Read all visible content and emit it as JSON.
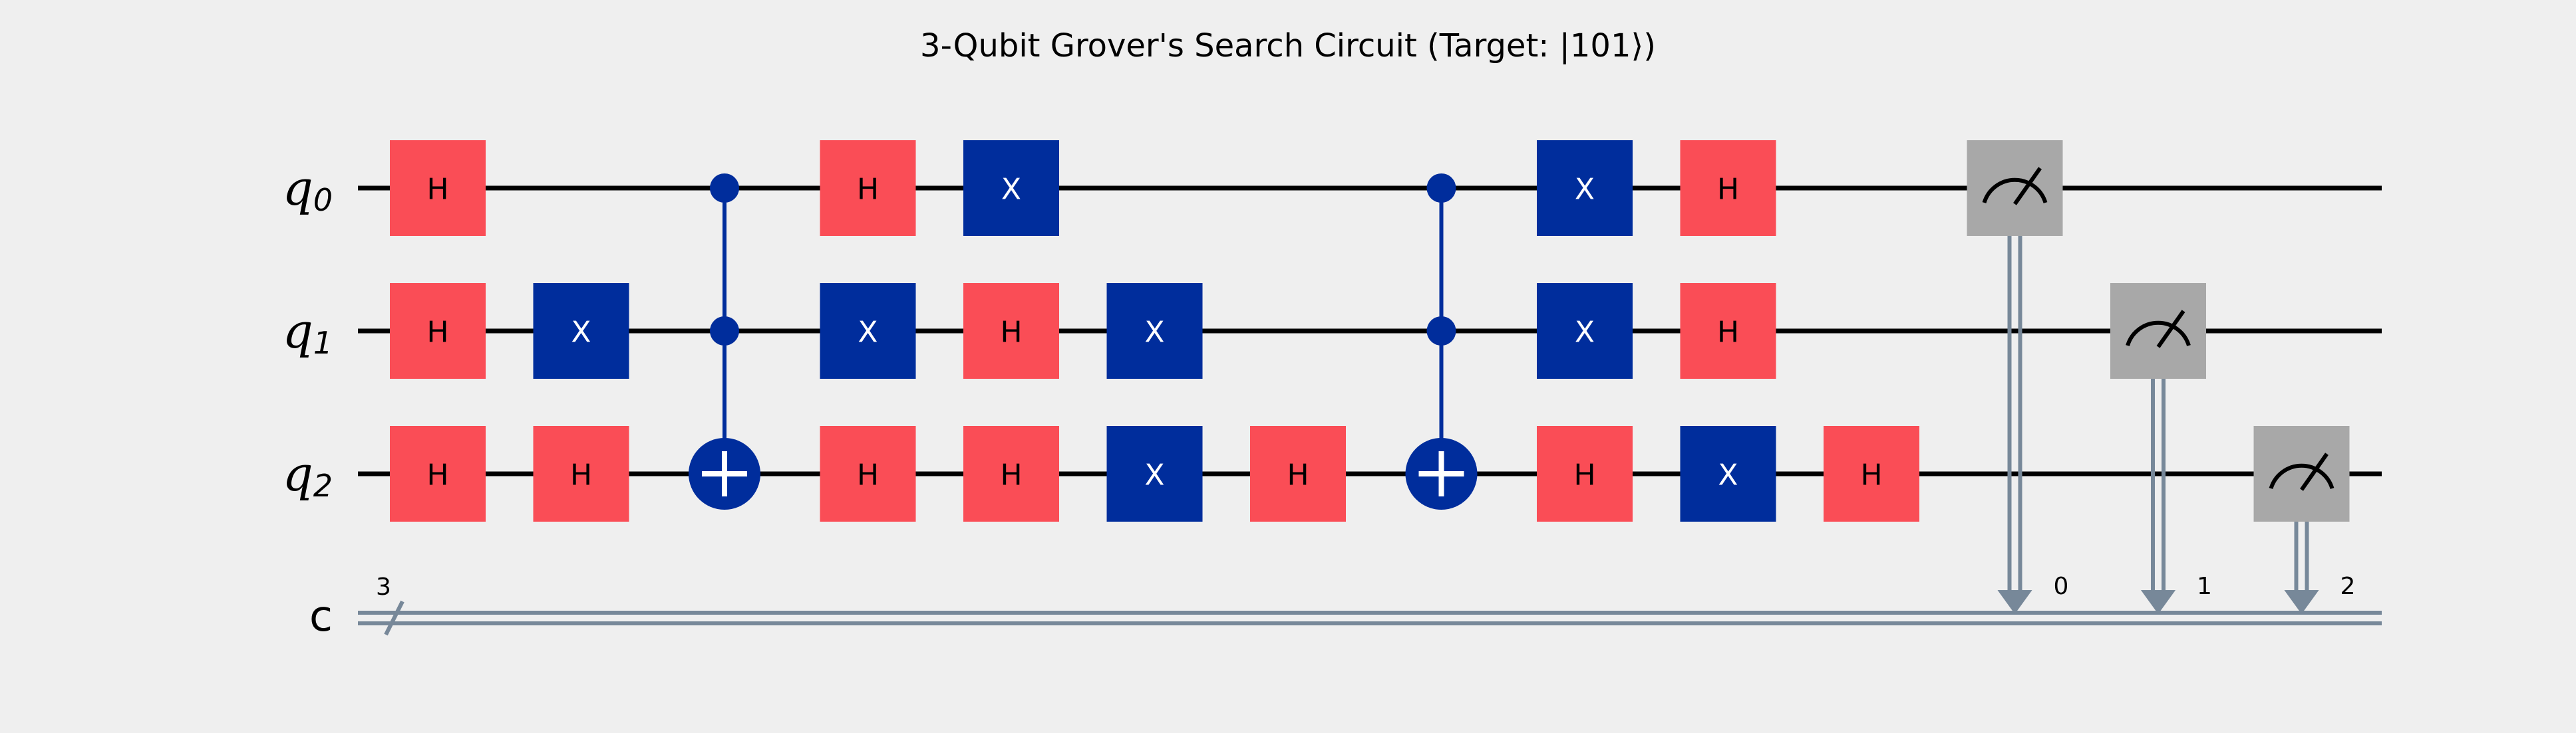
{
  "title": "3-Qubit Grover's Search Circuit (Target: |101⟩)",
  "wires": [
    {
      "name": "q",
      "index": "0"
    },
    {
      "name": "q",
      "index": "1"
    },
    {
      "name": "q",
      "index": "2"
    }
  ],
  "classical": {
    "name": "c",
    "width": "3"
  },
  "gates": [
    {
      "type": "H",
      "label": "H",
      "qubit": 0,
      "col": 0
    },
    {
      "type": "H",
      "label": "H",
      "qubit": 1,
      "col": 0
    },
    {
      "type": "H",
      "label": "H",
      "qubit": 2,
      "col": 0
    },
    {
      "type": "X",
      "label": "X",
      "qubit": 1,
      "col": 1
    },
    {
      "type": "H",
      "label": "H",
      "qubit": 2,
      "col": 1
    },
    {
      "type": "H",
      "label": "H",
      "qubit": 0,
      "col": 3
    },
    {
      "type": "X",
      "label": "X",
      "qubit": 1,
      "col": 3
    },
    {
      "type": "H",
      "label": "H",
      "qubit": 2,
      "col": 3
    },
    {
      "type": "X",
      "label": "X",
      "qubit": 0,
      "col": 4
    },
    {
      "type": "H",
      "label": "H",
      "qubit": 1,
      "col": 4
    },
    {
      "type": "H",
      "label": "H",
      "qubit": 2,
      "col": 4
    },
    {
      "type": "X",
      "label": "X",
      "qubit": 1,
      "col": 5
    },
    {
      "type": "X",
      "label": "X",
      "qubit": 2,
      "col": 5
    },
    {
      "type": "H",
      "label": "H",
      "qubit": 2,
      "col": 6
    },
    {
      "type": "X",
      "label": "X",
      "qubit": 0,
      "col": 8
    },
    {
      "type": "X",
      "label": "X",
      "qubit": 1,
      "col": 8
    },
    {
      "type": "H",
      "label": "H",
      "qubit": 2,
      "col": 8
    },
    {
      "type": "H",
      "label": "H",
      "qubit": 0,
      "col": 9
    },
    {
      "type": "H",
      "label": "H",
      "qubit": 1,
      "col": 9
    },
    {
      "type": "X",
      "label": "X",
      "qubit": 2,
      "col": 9
    },
    {
      "type": "H",
      "label": "H",
      "qubit": 2,
      "col": 10
    }
  ],
  "toffolis": [
    {
      "controls": [
        0,
        1
      ],
      "target": 2,
      "col": 2
    },
    {
      "controls": [
        0,
        1
      ],
      "target": 2,
      "col": 7
    }
  ],
  "measurements": [
    {
      "qubit": 0,
      "clbit": "0",
      "col": 11
    },
    {
      "qubit": 1,
      "clbit": "1",
      "col": 12
    },
    {
      "qubit": 2,
      "clbit": "2",
      "col": 13
    }
  ],
  "colors": {
    "H": "#fa4d56",
    "X": "#002d9c",
    "measure": "#a8a8a8",
    "control": "#002d9c",
    "classical": "#778899",
    "wire": "#000000",
    "background": "#efefef"
  }
}
